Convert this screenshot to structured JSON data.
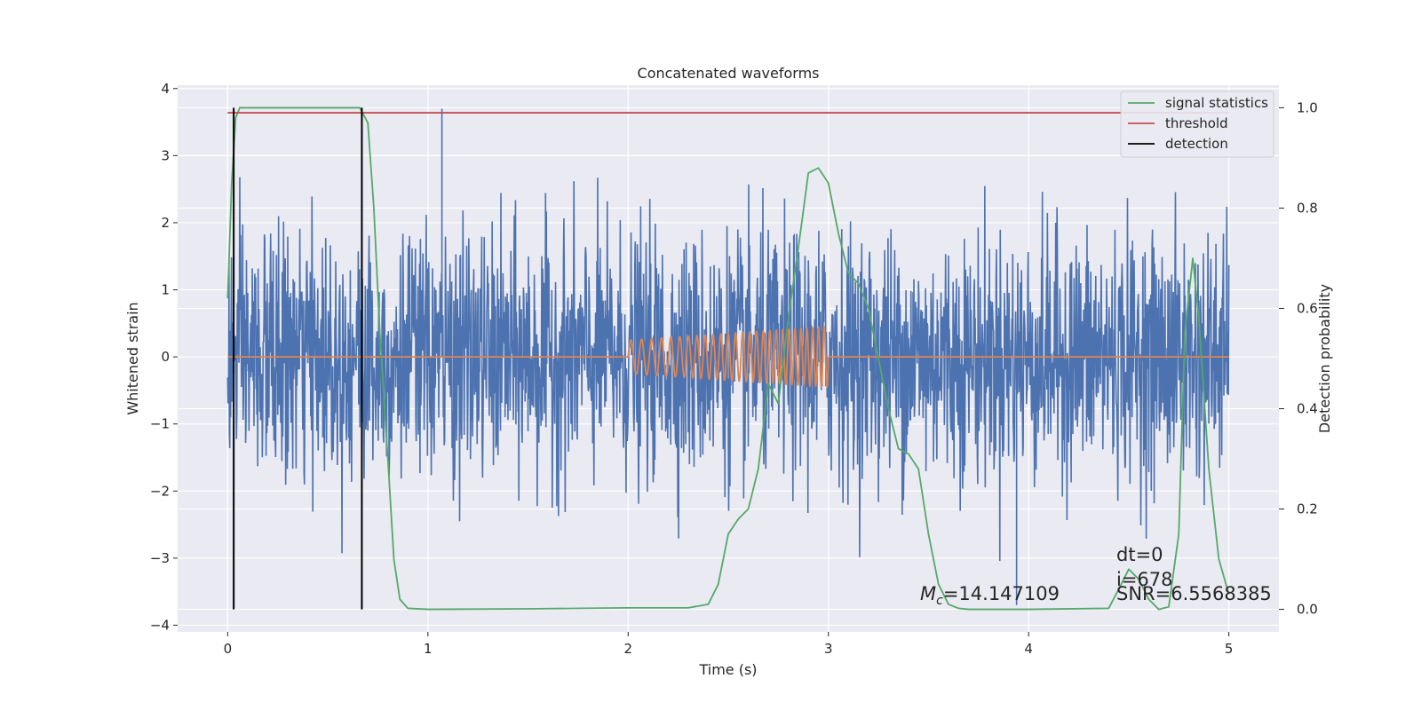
{
  "chart_data": {
    "type": "line",
    "title": "Concatenated waveforms",
    "xlabel": "Time (s)",
    "ylabel": "Whitened strain",
    "y2label": "Detection probability",
    "xlim": [
      -0.25,
      5.25
    ],
    "ylim": [
      -4.1,
      4.05
    ],
    "y2lim": [
      -0.045,
      1.045
    ],
    "x_ticks": [
      0,
      1,
      2,
      3,
      4,
      5
    ],
    "x_tick_labels": [
      "0",
      "1",
      "2",
      "3",
      "4",
      "5"
    ],
    "y_ticks": [
      -4,
      -3,
      -2,
      -1,
      0,
      1,
      2,
      3,
      4
    ],
    "y_tick_labels": [
      "−4",
      "−3",
      "−2",
      "−1",
      "0",
      "1",
      "2",
      "3",
      "4"
    ],
    "y2_ticks": [
      0.0,
      0.2,
      0.4,
      0.6,
      0.8,
      1.0
    ],
    "y2_tick_labels": [
      "0.0",
      "0.2",
      "0.4",
      "0.6",
      "0.8",
      "1.0"
    ],
    "grid": true,
    "legend_position": "top-right",
    "background": "#eaeaf2",
    "series": [
      {
        "name": "",
        "axis": "left",
        "color": "#4c72b0",
        "kind": "noise",
        "x_range": [
          0,
          5
        ],
        "typical_range": [
          -2.6,
          2.7
        ],
        "max": 3.7,
        "min": -3.7
      },
      {
        "name": "",
        "axis": "left",
        "color": "#dd8452",
        "kind": "chirp",
        "x_range": [
          2,
          3
        ],
        "amplitude_start": 0.25,
        "amplitude_end": 0.45,
        "baseline": 0
      },
      {
        "name": "signal statistics",
        "axis": "right",
        "color": "#55a868",
        "x": [
          0.0,
          0.02,
          0.04,
          0.06,
          0.1,
          0.2,
          0.6,
          0.66,
          0.7,
          0.73,
          0.76,
          0.8,
          0.83,
          0.86,
          0.9,
          1.0,
          1.5,
          2.0,
          2.3,
          2.4,
          2.45,
          2.5,
          2.55,
          2.6,
          2.65,
          2.7,
          2.75,
          2.8,
          2.85,
          2.9,
          2.95,
          3.0,
          3.05,
          3.1,
          3.15,
          3.2,
          3.25,
          3.3,
          3.35,
          3.4,
          3.45,
          3.5,
          3.55,
          3.6,
          3.65,
          3.7,
          3.8,
          4.0,
          4.4,
          4.45,
          4.5,
          4.55,
          4.6,
          4.65,
          4.7,
          4.75,
          4.78,
          4.82,
          4.85,
          4.9,
          4.95,
          5.0
        ],
        "y": [
          0.62,
          0.85,
          0.98,
          1.0,
          1.0,
          1.0,
          1.0,
          1.0,
          0.97,
          0.8,
          0.55,
          0.3,
          0.1,
          0.02,
          0.002,
          0.0,
          0.001,
          0.003,
          0.003,
          0.01,
          0.05,
          0.15,
          0.18,
          0.2,
          0.28,
          0.45,
          0.41,
          0.58,
          0.72,
          0.87,
          0.88,
          0.85,
          0.75,
          0.67,
          0.65,
          0.6,
          0.5,
          0.4,
          0.32,
          0.31,
          0.28,
          0.15,
          0.05,
          0.01,
          0.002,
          0.0,
          0.0,
          0.0,
          0.002,
          0.04,
          0.08,
          0.06,
          0.02,
          0.0,
          0.005,
          0.15,
          0.55,
          0.7,
          0.58,
          0.28,
          0.1,
          0.03
        ]
      },
      {
        "name": "threshold",
        "axis": "right",
        "color": "#c44e52",
        "x": [
          0,
          5
        ],
        "y": [
          0.99,
          0.99
        ]
      },
      {
        "name": "detection",
        "axis": "right",
        "color": "#000000",
        "vlines_x": [
          0.03,
          0.67
        ],
        "y_range": [
          0.0,
          1.0
        ]
      }
    ],
    "annotations": {
      "mc_symbol": "M",
      "mc_sub": "c",
      "mc_value": "=14.147109",
      "dt": "dt=0",
      "i": "i=678",
      "snr": "SNR=6.5568385"
    }
  }
}
